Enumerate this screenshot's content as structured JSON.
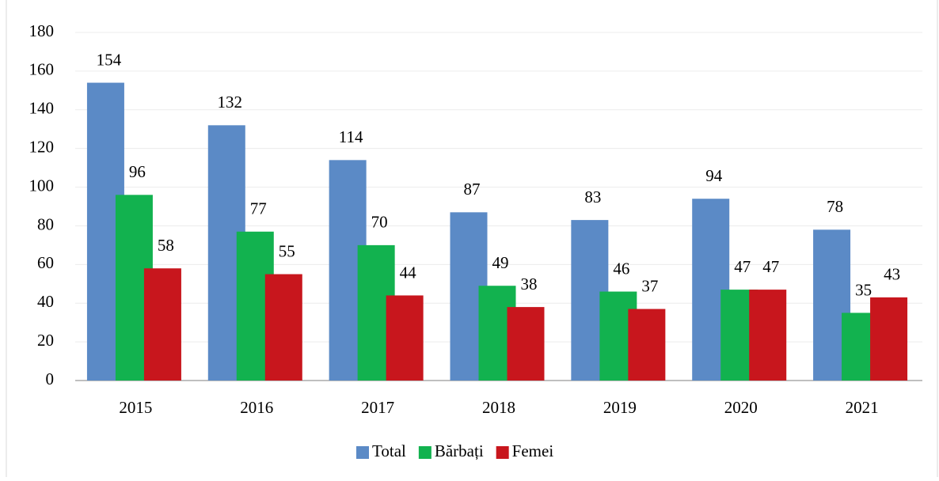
{
  "chart_data": {
    "type": "bar",
    "categories": [
      "2015",
      "2016",
      "2017",
      "2018",
      "2019",
      "2020",
      "2021"
    ],
    "series": [
      {
        "name": "Total",
        "color": "#5b8ac6",
        "values": [
          154,
          132,
          114,
          87,
          83,
          94,
          78
        ]
      },
      {
        "name": "Bărbați",
        "color": "#12b24f",
        "values": [
          96,
          77,
          70,
          49,
          46,
          47,
          35
        ]
      },
      {
        "name": "Femei",
        "color": "#c8161d",
        "values": [
          58,
          55,
          44,
          38,
          37,
          47,
          43
        ]
      }
    ],
    "ylim": [
      0,
      180
    ],
    "yticks": [
      0,
      20,
      40,
      60,
      80,
      100,
      120,
      140,
      160,
      180
    ],
    "grid": true,
    "legend": "bottom"
  }
}
